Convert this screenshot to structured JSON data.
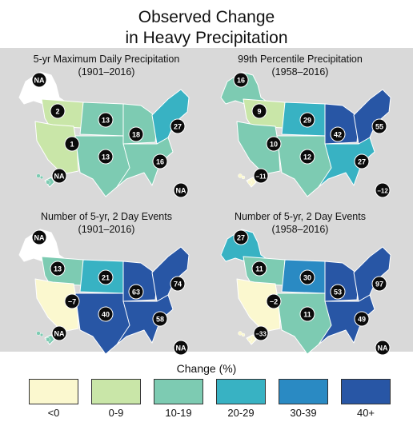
{
  "title_line1": "Observed Change",
  "title_line2": "in Heavy Precipitation",
  "colors": {
    "lt0": "#fbf8cf",
    "c0_9": "#c9e6a8",
    "c10_19": "#7dcbb2",
    "c20_29": "#38b2c3",
    "c30_39": "#2a8ac3",
    "c40p": "#2856a5",
    "alaska_none": "#ffffff"
  },
  "maps": [
    {
      "title_line1": "5-yr Maximum Daily Precipitation",
      "title_line2": "(1901–2016)",
      "regions": {
        "nw": "c0_9",
        "sw": "c0_9",
        "ngp": "c10_19",
        "sgp": "c10_19",
        "mw": "c10_19",
        "ne": "c20_29",
        "se": "c10_19",
        "ak": "alaska_none",
        "hi": "c10_19"
      },
      "labels": {
        "ak": "NA",
        "nw": "2",
        "sw": "1",
        "ngp": "13",
        "sgp": "13",
        "mw": "18",
        "ne": "27",
        "se": "16",
        "hi": "NA",
        "pr": "NA"
      }
    },
    {
      "title_line1": "99th Percentile Precipitation",
      "title_line2": "(1958–2016)",
      "regions": {
        "nw": "c0_9",
        "sw": "c10_19",
        "ngp": "c20_29",
        "sgp": "c10_19",
        "mw": "c40p",
        "ne": "c40p",
        "se": "c20_29",
        "ak": "c10_19",
        "hi": "lt0"
      },
      "labels": {
        "ak": "16",
        "nw": "9",
        "sw": "10",
        "ngp": "29",
        "sgp": "12",
        "mw": "42",
        "ne": "55",
        "se": "27",
        "hi": "−11",
        "pr": "−12"
      }
    },
    {
      "title_line1": "Number of  5-yr, 2 Day Events",
      "title_line2": "(1901–2016)",
      "regions": {
        "nw": "c10_19",
        "sw": "lt0",
        "ngp": "c20_29",
        "sgp": "c40p",
        "mw": "c40p",
        "ne": "c40p",
        "se": "c40p",
        "ak": "alaska_none",
        "hi": "c10_19"
      },
      "labels": {
        "ak": "NA",
        "nw": "13",
        "sw": "−7",
        "ngp": "21",
        "sgp": "40",
        "mw": "63",
        "ne": "74",
        "se": "58",
        "hi": "NA",
        "pr": "NA"
      }
    },
    {
      "title_line1": "Number of  5-yr, 2 Day Events",
      "title_line2": "(1958–2016)",
      "regions": {
        "nw": "c10_19",
        "sw": "lt0",
        "ngp": "c30_39",
        "sgp": "c10_19",
        "mw": "c40p",
        "ne": "c40p",
        "se": "c40p",
        "ak": "c20_29",
        "hi": "lt0"
      },
      "labels": {
        "ak": "27",
        "nw": "11",
        "sw": "−2",
        "ngp": "30",
        "sgp": "11",
        "mw": "53",
        "ne": "97",
        "se": "49",
        "hi": "−33",
        "pr": "NA"
      }
    }
  ],
  "legend": {
    "title": "Change (%)",
    "items": [
      {
        "label": "<0",
        "color_key": "lt0"
      },
      {
        "label": "0-9",
        "color_key": "c0_9"
      },
      {
        "label": "10-19",
        "color_key": "c10_19"
      },
      {
        "label": "20-29",
        "color_key": "c20_29"
      },
      {
        "label": "30-39",
        "color_key": "c30_39"
      },
      {
        "label": "40+",
        "color_key": "c40p"
      }
    ]
  }
}
